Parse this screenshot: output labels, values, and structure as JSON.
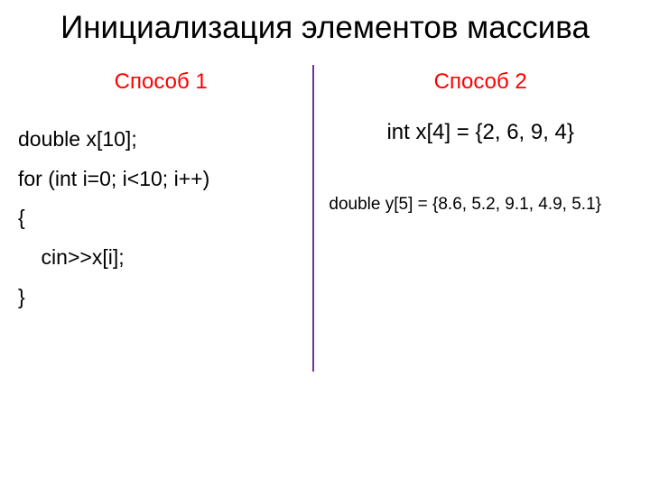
{
  "title": "Инициализация элементов массива",
  "left": {
    "label": "Способ 1",
    "lines": [
      "double x[10];",
      "for (int i=0; i<10; i++)",
      "{",
      "    cin>>x[i];",
      "}"
    ]
  },
  "right": {
    "label": "Способ 2",
    "line1": "int  x[4] = {2, 6, 9, 4}",
    "line2": "double  y[5] = {8.6, 5.2, 9.1, 4.9, 5.1}"
  },
  "colors": {
    "method_label": "#ff0000",
    "divider": "#7030a0",
    "text": "#000000",
    "background": "#ffffff"
  }
}
